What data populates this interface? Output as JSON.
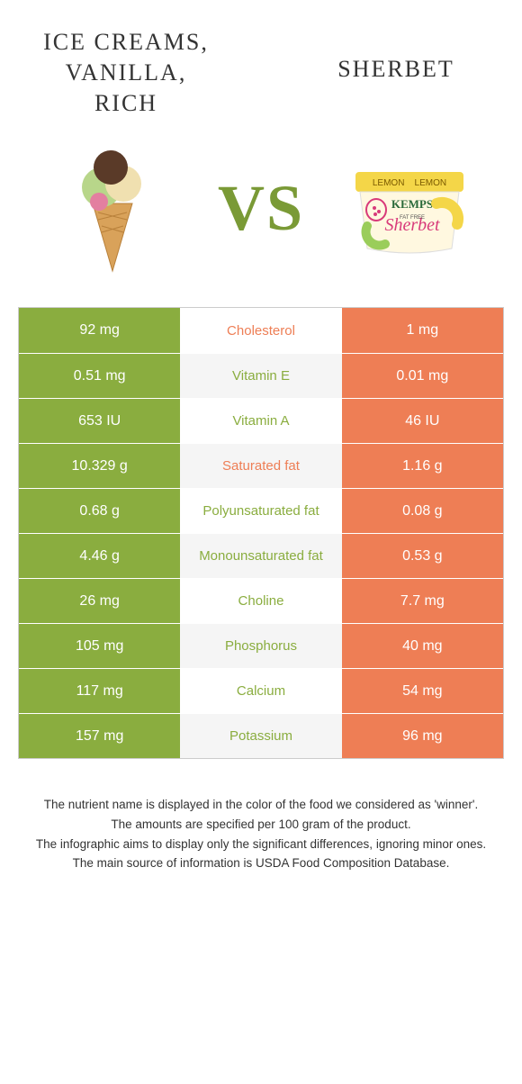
{
  "colors": {
    "green": "#8aad3f",
    "orange": "#ee7e55",
    "vs": "#7a9a36",
    "text": "#333333",
    "rowAltBg": "#f5f5f5",
    "border": "#cccccc"
  },
  "titles": {
    "left": "Ice creams,\nvanilla,\nrich",
    "right": "Sherbet"
  },
  "vs": "VS",
  "rows": [
    {
      "name": "Cholesterol",
      "left": "92 mg",
      "right": "1 mg",
      "winnerColor": "#ee7e55"
    },
    {
      "name": "Vitamin E",
      "left": "0.51 mg",
      "right": "0.01 mg",
      "winnerColor": "#8aad3f"
    },
    {
      "name": "Vitamin A",
      "left": "653 IU",
      "right": "46 IU",
      "winnerColor": "#8aad3f"
    },
    {
      "name": "Saturated fat",
      "left": "10.329 g",
      "right": "1.16 g",
      "winnerColor": "#ee7e55"
    },
    {
      "name": "Polyunsaturated fat",
      "left": "0.68 g",
      "right": "0.08 g",
      "winnerColor": "#8aad3f"
    },
    {
      "name": "Monounsaturated fat",
      "left": "4.46 g",
      "right": "0.53 g",
      "winnerColor": "#8aad3f"
    },
    {
      "name": "Choline",
      "left": "26 mg",
      "right": "7.7 mg",
      "winnerColor": "#8aad3f"
    },
    {
      "name": "Phosphorus",
      "left": "105 mg",
      "right": "40 mg",
      "winnerColor": "#8aad3f"
    },
    {
      "name": "Calcium",
      "left": "117 mg",
      "right": "54 mg",
      "winnerColor": "#8aad3f"
    },
    {
      "name": "Potassium",
      "left": "157 mg",
      "right": "96 mg",
      "winnerColor": "#8aad3f"
    }
  ],
  "footer": [
    "The nutrient name is displayed in the color of the food we considered as 'winner'.",
    "The amounts are specified per 100 gram of the product.",
    "The infographic aims to display only the significant differences, ignoring minor ones.",
    "The main source of information is USDA Food Composition Database."
  ]
}
